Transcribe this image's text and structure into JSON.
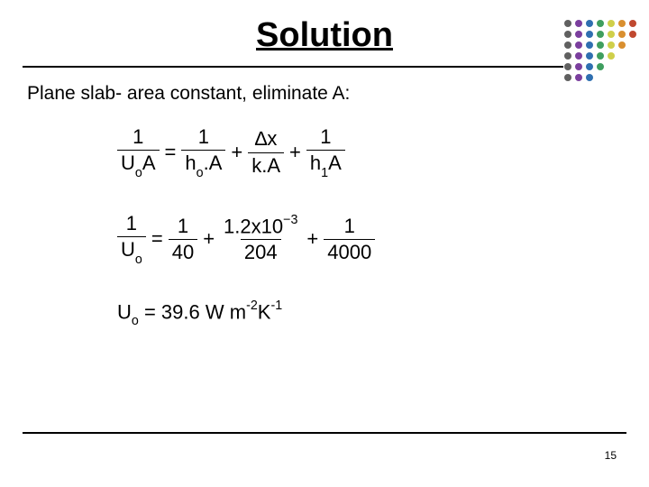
{
  "title": "Solution",
  "body_text": "Plane slab- area constant, eliminate A:",
  "eq1": {
    "lhs_num": "1",
    "lhs_den_html": "U<span class='sub'>o</span>A",
    "rhs": [
      {
        "num": "1",
        "den_html": "h<span class='sub'>o</span>.A"
      },
      {
        "num_html": "&#8710;x",
        "den": "k.A"
      },
      {
        "num": "1",
        "den_html": "h<span class='sub'>1</span>A"
      }
    ]
  },
  "eq2": {
    "lhs_num": "1",
    "lhs_den_html": "U<span class='sub'>o</span>",
    "rhs": [
      {
        "num": "1",
        "den": "40"
      },
      {
        "num_html": "1.2x10<span class='sup'>&minus;3</span>",
        "den": "204"
      },
      {
        "num": "1",
        "den": "4000"
      }
    ]
  },
  "result_html": "U<span class='sub'>o</span> = 39.6 W m<span class='sup'>-2</span>K<span class='sup'>-1</span>",
  "page_number": "15",
  "dots": {
    "spacing": 12,
    "size": 8,
    "cols": [
      {
        "color": "#606060",
        "rows": 6
      },
      {
        "color": "#7b3f9e",
        "rows": 6
      },
      {
        "color": "#2f6fb0",
        "rows": 6
      },
      {
        "color": "#3f9e5f",
        "rows": 5
      },
      {
        "color": "#cfcf4a",
        "rows": 4
      },
      {
        "color": "#d98f2f",
        "rows": 3
      },
      {
        "color": "#c0482f",
        "rows": 2
      }
    ]
  }
}
